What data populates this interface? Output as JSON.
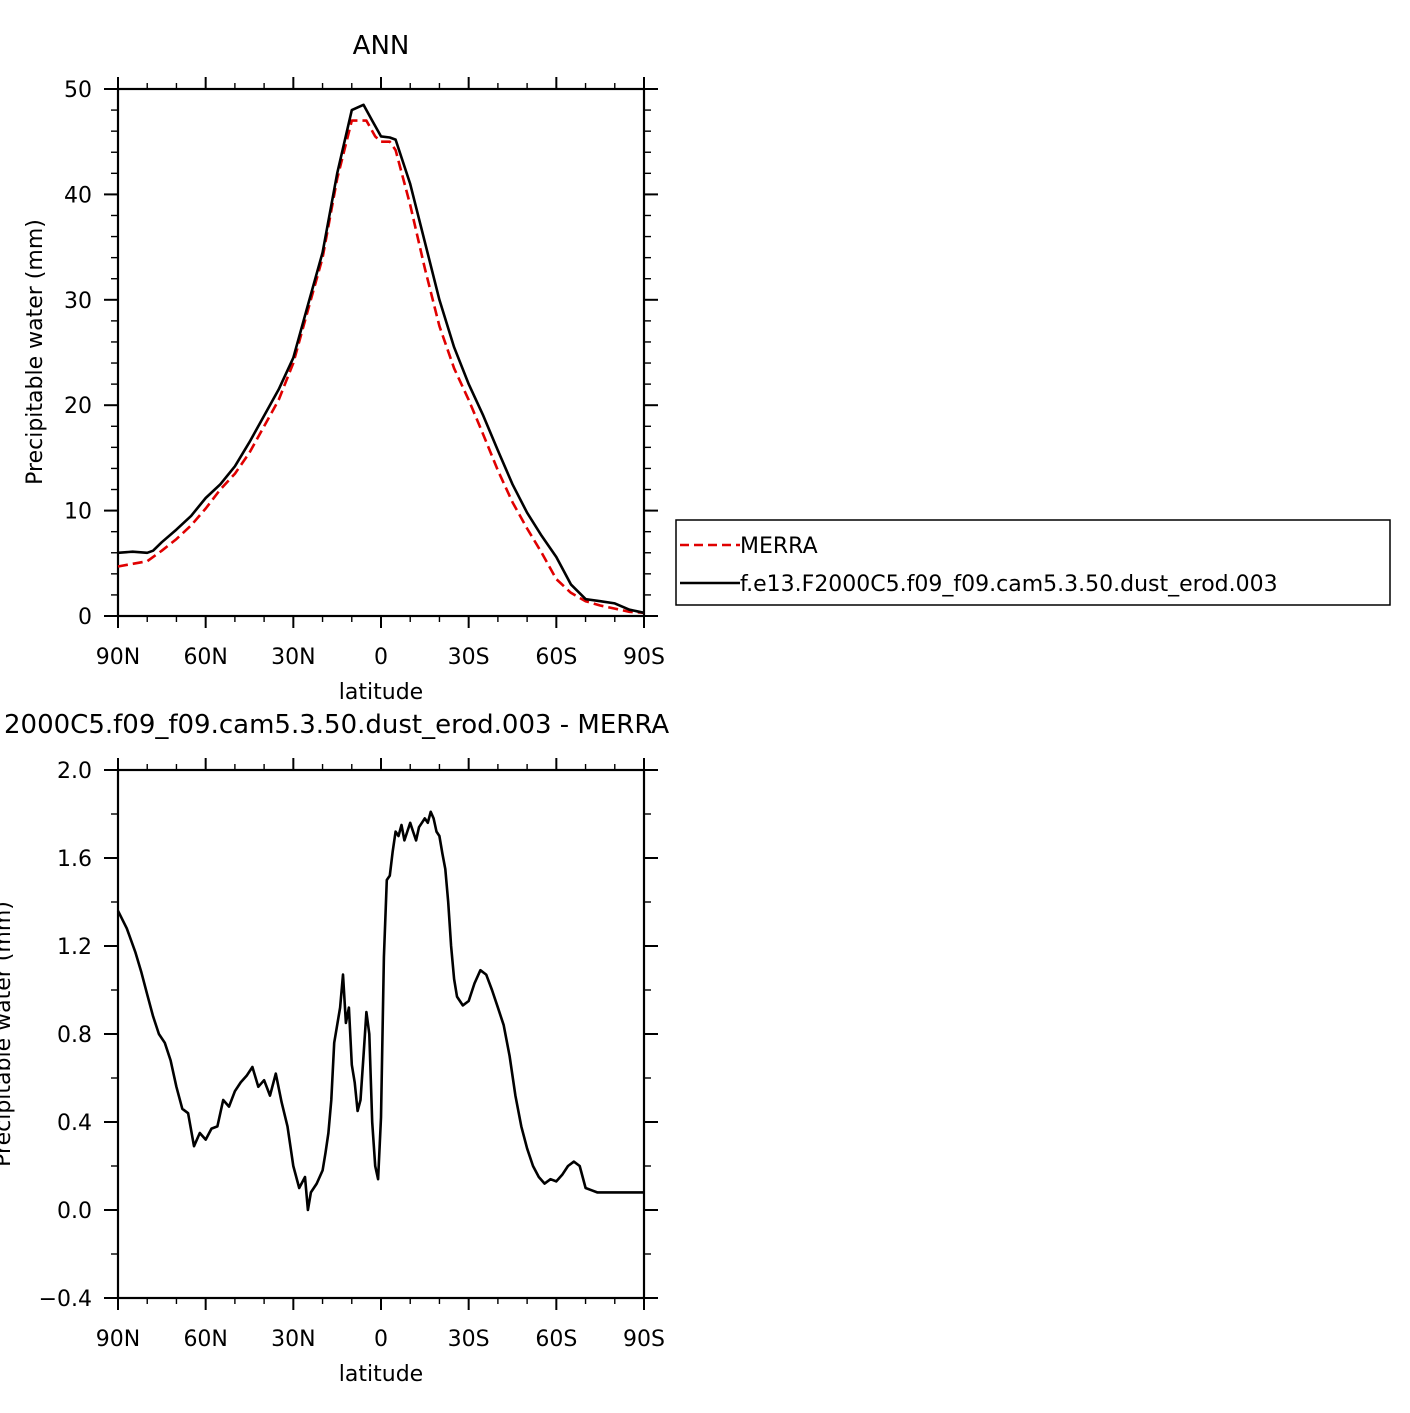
{
  "chart_data": [
    {
      "type": "line",
      "title": "ANN",
      "xlabel": "latitude",
      "ylabel": "Precipitable water (mm)",
      "x_tick_labels": [
        "90N",
        "60N",
        "30N",
        "0",
        "30S",
        "60S",
        "90S"
      ],
      "x_tick_values": [
        90,
        60,
        30,
        0,
        -30,
        -60,
        -90
      ],
      "xlim": [
        90,
        -90
      ],
      "y_ticks": [
        0,
        10,
        20,
        30,
        40,
        50
      ],
      "ylim": [
        0,
        50
      ],
      "legend": "right",
      "series": [
        {
          "name": "MERRA",
          "color": "#e00000",
          "style": "dashed",
          "x": [
            90,
            80,
            75,
            70,
            65,
            60,
            55,
            50,
            45,
            40,
            35,
            30,
            25,
            20,
            15,
            10,
            5,
            2,
            0,
            -3,
            -5,
            -10,
            -15,
            -20,
            -25,
            -30,
            -35,
            -40,
            -45,
            -50,
            -55,
            -60,
            -65,
            -70,
            -75,
            -80,
            -85,
            -90
          ],
          "values": [
            4.7,
            5.2,
            6.2,
            7.3,
            8.6,
            10.2,
            12.0,
            13.5,
            15.5,
            18.0,
            20.5,
            24.0,
            29.0,
            34.0,
            41.5,
            47.0,
            47.0,
            45.5,
            45.0,
            45.0,
            44.2,
            39.0,
            33.0,
            27.5,
            23.5,
            20.5,
            17.2,
            13.8,
            10.8,
            8.3,
            6.0,
            3.5,
            2.2,
            1.4,
            1.0,
            0.7,
            0.4,
            0.3
          ]
        },
        {
          "name": "f.e13.F2000C5.f09_f09.cam5.3.50.dust_erod.003",
          "color": "#000000",
          "style": "solid",
          "x": [
            90,
            85,
            80,
            78,
            75,
            70,
            65,
            60,
            55,
            50,
            45,
            40,
            35,
            30,
            25,
            20,
            15,
            10,
            6,
            3,
            0,
            -3,
            -5,
            -10,
            -15,
            -20,
            -25,
            -30,
            -35,
            -40,
            -45,
            -50,
            -55,
            -60,
            -65,
            -70,
            -75,
            -80,
            -85,
            -90
          ],
          "values": [
            6.0,
            6.1,
            6.0,
            6.2,
            7.0,
            8.2,
            9.5,
            11.2,
            12.5,
            14.2,
            16.5,
            19.0,
            21.5,
            24.5,
            29.5,
            34.5,
            42.0,
            48.0,
            48.5,
            47.0,
            45.5,
            45.4,
            45.2,
            41.0,
            35.5,
            30.0,
            25.5,
            22.0,
            19.0,
            15.7,
            12.5,
            9.8,
            7.6,
            5.6,
            3.0,
            1.6,
            1.4,
            1.2,
            0.6,
            0.3
          ]
        }
      ]
    },
    {
      "type": "line",
      "title": "2000C5.f09_f09.cam5.3.50.dust_erod.003 - MERRA",
      "xlabel": "latitude",
      "ylabel": "Precipitable water (mm)",
      "x_tick_labels": [
        "90N",
        "60N",
        "30N",
        "0",
        "30S",
        "60S",
        "90S"
      ],
      "x_tick_values": [
        90,
        60,
        30,
        0,
        -30,
        -60,
        -90
      ],
      "xlim": [
        90,
        -90
      ],
      "y_ticks": [
        "-0.4",
        "0.0",
        "0.4",
        "0.8",
        "1.2",
        "1.6",
        "2.0"
      ],
      "ylim": [
        -0.4,
        2.0
      ],
      "series": [
        {
          "color": "#000000",
          "style": "solid",
          "x": [
            90,
            87,
            84,
            82,
            80,
            78,
            76,
            74,
            72,
            70,
            68,
            66,
            64,
            62,
            60,
            58,
            56,
            54,
            52,
            50,
            48,
            46,
            44,
            42,
            40,
            38,
            36,
            34,
            32,
            30,
            28,
            26,
            25,
            24,
            22,
            20,
            19,
            18,
            17,
            16,
            14,
            13,
            12,
            11,
            10,
            9,
            8,
            7,
            6,
            5,
            4,
            3,
            2,
            1,
            0,
            -1,
            -2,
            -3,
            -4,
            -5,
            -6,
            -7,
            -8,
            -9,
            -10,
            -11,
            -12,
            -13,
            -14,
            -15,
            -16,
            -17,
            -18,
            -19,
            -20,
            -21,
            -22,
            -23,
            -24,
            -25,
            -26,
            -28,
            -30,
            -32,
            -34,
            -36,
            -38,
            -40,
            -42,
            -44,
            -46,
            -48,
            -50,
            -52,
            -54,
            -56,
            -58,
            -60,
            -62,
            -64,
            -66,
            -68,
            -70,
            -72,
            -74,
            -76,
            -78,
            -80,
            -82,
            -84,
            -86,
            -88,
            -90
          ],
          "values": [
            1.36,
            1.28,
            1.17,
            1.08,
            0.98,
            0.88,
            0.8,
            0.76,
            0.68,
            0.56,
            0.46,
            0.44,
            0.29,
            0.35,
            0.32,
            0.37,
            0.38,
            0.5,
            0.47,
            0.54,
            0.58,
            0.61,
            0.65,
            0.56,
            0.59,
            0.52,
            0.62,
            0.49,
            0.38,
            0.2,
            0.1,
            0.15,
            0.0,
            0.08,
            0.12,
            0.18,
            0.26,
            0.35,
            0.5,
            0.76,
            0.92,
            1.07,
            0.85,
            0.92,
            0.66,
            0.58,
            0.45,
            0.5,
            0.7,
            0.9,
            0.8,
            0.4,
            0.2,
            0.14,
            0.42,
            1.15,
            1.5,
            1.52,
            1.63,
            1.72,
            1.7,
            1.75,
            1.68,
            1.72,
            1.76,
            1.72,
            1.68,
            1.74,
            1.76,
            1.78,
            1.76,
            1.81,
            1.78,
            1.72,
            1.7,
            1.62,
            1.55,
            1.4,
            1.2,
            1.05,
            0.97,
            0.93,
            0.95,
            1.03,
            1.09,
            1.07,
            1.0,
            0.92,
            0.84,
            0.7,
            0.52,
            0.38,
            0.28,
            0.2,
            0.15,
            0.12,
            0.14,
            0.13,
            0.16,
            0.2,
            0.22,
            0.2,
            0.1,
            0.09,
            0.08,
            0.08,
            0.08,
            0.08,
            0.08,
            0.08,
            0.08,
            0.08,
            0.08
          ]
        }
      ]
    }
  ]
}
